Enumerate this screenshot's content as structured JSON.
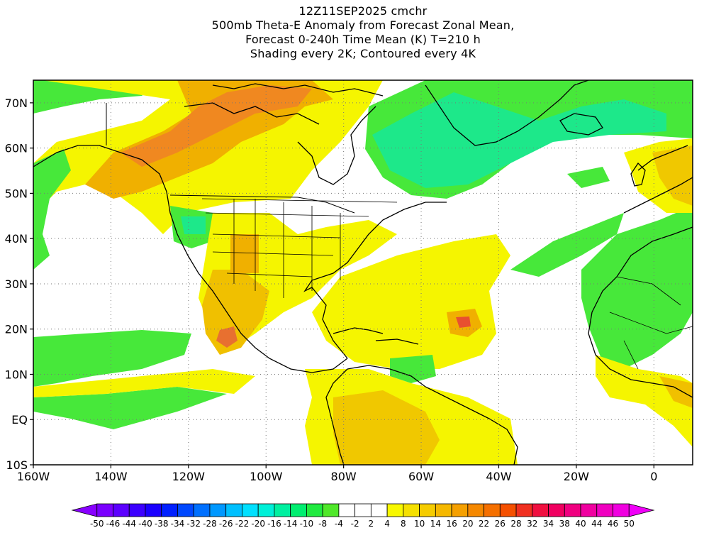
{
  "header": {
    "line1": "12Z11SEP2025 cmchr",
    "line2": "500mb Theta-E Anomaly from Forecast Zonal Mean,",
    "line3": "Forecast 0-240h Time Mean (K) T=210 h",
    "line4": "Shading every 2K; Contoured every 4K"
  },
  "map": {
    "lon_range": [
      -160,
      10
    ],
    "lat_range": [
      -10,
      75
    ],
    "lon_ticks": [
      {
        "value": -160,
        "label": "160W"
      },
      {
        "value": -140,
        "label": "140W"
      },
      {
        "value": -120,
        "label": "120W"
      },
      {
        "value": -100,
        "label": "100W"
      },
      {
        "value": -80,
        "label": "80W"
      },
      {
        "value": -60,
        "label": "60W"
      },
      {
        "value": -40,
        "label": "40W"
      },
      {
        "value": -20,
        "label": "20W"
      },
      {
        "value": 0,
        "label": "0"
      }
    ],
    "lat_ticks": [
      {
        "value": 70,
        "label": "70N"
      },
      {
        "value": 60,
        "label": "60N"
      },
      {
        "value": 50,
        "label": "50N"
      },
      {
        "value": 40,
        "label": "40N"
      },
      {
        "value": 30,
        "label": "30N"
      },
      {
        "value": 20,
        "label": "20N"
      },
      {
        "value": 10,
        "label": "10N"
      },
      {
        "value": 0,
        "label": "EQ"
      },
      {
        "value": -10,
        "label": "10S"
      }
    ],
    "grid": "dotted",
    "colors": {
      "green": "#47e83a",
      "teal": "#1de88a",
      "yellow": "#f5f500",
      "gold": "#f0c800",
      "orange": "#f0a000",
      "dark_orange": "#f07820",
      "red": "#e85030"
    }
  },
  "colorbar": {
    "labels": [
      "-50",
      "-46",
      "-44",
      "-40",
      "-38",
      "-34",
      "-32",
      "-28",
      "-26",
      "-22",
      "-20",
      "-16",
      "-14",
      "-10",
      "-8",
      "-4",
      "-2",
      "2",
      "4",
      "8",
      "10",
      "14",
      "16",
      "20",
      "22",
      "26",
      "28",
      "32",
      "34",
      "38",
      "40",
      "44",
      "46",
      "50"
    ],
    "colors": [
      "#8800ff",
      "#7a00ff",
      "#5c00ff",
      "#3c00ff",
      "#1a00ff",
      "#0020ff",
      "#0048ff",
      "#0070ff",
      "#0098ff",
      "#00c0ff",
      "#00e0ff",
      "#00f0d8",
      "#00f0a0",
      "#00ee70",
      "#20ea40",
      "#50e82a",
      "#ffffff",
      "#ffffff",
      "#ffffff",
      "#f8f800",
      "#f5e000",
      "#f5cc00",
      "#f5b800",
      "#f5a000",
      "#f58800",
      "#f57000",
      "#f55000",
      "#f03020",
      "#f01040",
      "#f00060",
      "#f00080",
      "#f000a0",
      "#f000c0",
      "#f000e0",
      "#f000f8"
    ]
  }
}
